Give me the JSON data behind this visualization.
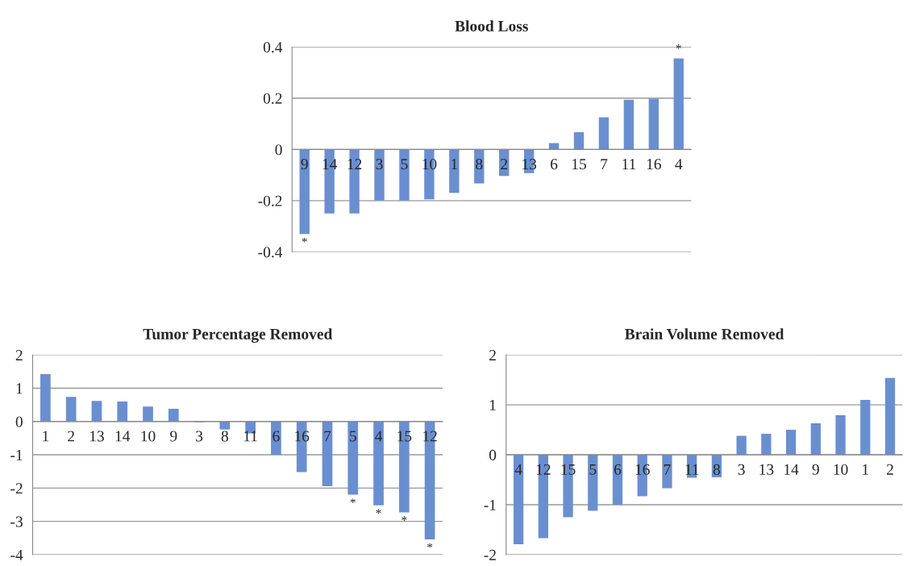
{
  "chart_data": [
    {
      "type": "bar",
      "title": "Blood Loss",
      "categories": [
        "9",
        "14",
        "12",
        "3",
        "5",
        "10",
        "1",
        "8",
        "2",
        "13",
        "6",
        "15",
        "7",
        "11",
        "16",
        "4"
      ],
      "values": [
        -0.33,
        -0.25,
        -0.25,
        -0.2,
        -0.2,
        -0.195,
        -0.17,
        -0.133,
        -0.104,
        -0.093,
        0.025,
        0.067,
        0.125,
        0.194,
        0.198,
        0.355
      ],
      "color": "#6a8fd0",
      "ylim": [
        -0.4,
        0.4
      ],
      "yticks": [
        -0.4,
        -0.2,
        0,
        0.2,
        0.4
      ],
      "grid": "y",
      "annotations": [
        {
          "text": "*",
          "x": "9",
          "y": -0.33
        },
        {
          "text": "*",
          "x": "4",
          "y": 0.355
        }
      ]
    },
    {
      "type": "bar",
      "title": "Tumor Percentage Removed",
      "categories": [
        "1",
        "2",
        "13",
        "14",
        "10",
        "9",
        "3",
        "8",
        "11",
        "6",
        "16",
        "7",
        "5",
        "4",
        "15",
        "12"
      ],
      "values": [
        1.42,
        0.74,
        0.62,
        0.6,
        0.45,
        0.38,
        -0.02,
        -0.24,
        -0.36,
        -1.0,
        -1.52,
        -1.94,
        -2.2,
        -2.52,
        -2.73,
        -3.54
      ],
      "color": "#6a8fd0",
      "ylim": [
        -4,
        2
      ],
      "yticks": [
        -4,
        -3,
        -2,
        -1,
        0,
        1,
        2
      ],
      "grid": "y",
      "annotations": [
        {
          "text": "*",
          "x": "5",
          "y": -2.2
        },
        {
          "text": "*",
          "x": "4",
          "y": -2.52
        },
        {
          "text": "*",
          "x": "15",
          "y": -2.73
        },
        {
          "text": "*",
          "x": "12",
          "y": -3.54
        }
      ]
    },
    {
      "type": "bar",
      "title": "Brain Volume Removed",
      "categories": [
        "4",
        "12",
        "15",
        "5",
        "6",
        "16",
        "7",
        "11",
        "8",
        "3",
        "13",
        "14",
        "9",
        "10",
        "1",
        "2"
      ],
      "values": [
        -1.79,
        -1.67,
        -1.25,
        -1.12,
        -1.0,
        -0.83,
        -0.67,
        -0.46,
        -0.45,
        0.38,
        0.42,
        0.5,
        0.63,
        0.79,
        1.1,
        1.54
      ],
      "color": "#6a8fd0",
      "ylim": [
        -2,
        2
      ],
      "yticks": [
        -2,
        -1,
        0,
        1,
        2
      ],
      "grid": "y"
    }
  ]
}
